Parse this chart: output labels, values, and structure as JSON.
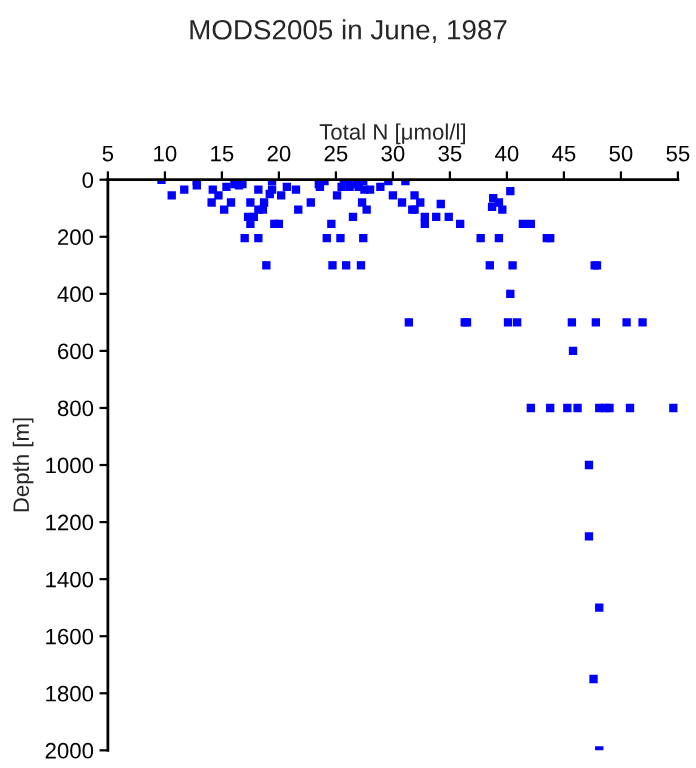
{
  "chart_data": {
    "type": "scatter",
    "title": "MODS2005 in June, 1987",
    "xlabel": "Total N [μmol/l]",
    "ylabel": "Depth [m]",
    "x": [
      9.7,
      10.6,
      11.7,
      12.8,
      12.8,
      14.2,
      14.1,
      14.7,
      15.2,
      15.4,
      15.8,
      16.1,
      16.5,
      16.8,
      17.0,
      17.3,
      17.5,
      17.5,
      17.8,
      18.2,
      18.2,
      18.2,
      18.6,
      18.7,
      18.9,
      19.2,
      19.4,
      19.4,
      19.6,
      20.0,
      20.2,
      20.7,
      21.5,
      21.7,
      22.8,
      23.5,
      23.6,
      24.0,
      24.2,
      24.6,
      24.7,
      25.1,
      25.4,
      25.5,
      25.7,
      25.9,
      26.1,
      26.2,
      26.5,
      26.8,
      27.0,
      27.2,
      27.4,
      27.3,
      27.4,
      27.5,
      27.7,
      28.0,
      28.9,
      29.6,
      30.0,
      30.8,
      31.1,
      31.4,
      31.7,
      31.9,
      31.9,
      32.4,
      32.8,
      32.8,
      33.8,
      34.2,
      34.9,
      35.9,
      37.7,
      38.5,
      38.8,
      38.7,
      39.3,
      39.3,
      39.6,
      40.3,
      40.5,
      40.3,
      41.4,
      42.1,
      43.5,
      43.8,
      47.7,
      47.9,
      36.3,
      36.5,
      40.1,
      40.9,
      45.7,
      47.8,
      50.5,
      51.9,
      45.8,
      42.1,
      43.8,
      45.3,
      46.2,
      48.1,
      48.6,
      49.0,
      50.8,
      54.6,
      47.2,
      47.2,
      48.1,
      47.6,
      48.1
    ],
    "series": [
      {
        "color": "#0000ff",
        "values": [
          0,
          55,
          35,
          5,
          20,
          35,
          80,
          55,
          105,
          25,
          80,
          15,
          20,
          15,
          205,
          130,
          80,
          155,
          130,
          205,
          35,
          105,
          105,
          80,
          300,
          50,
          5,
          35,
          155,
          155,
          55,
          25,
          35,
          105,
          80,
          15,
          25,
          5,
          205,
          155,
          300,
          55,
          205,
          25,
          5,
          300,
          5,
          25,
          130,
          15,
          25,
          300,
          205,
          80,
          5,
          35,
          105,
          35,
          25,
          5,
          55,
          80,
          5,
          500,
          105,
          105,
          55,
          80,
          130,
          155,
          130,
          85,
          130,
          155,
          205,
          300,
          65,
          95,
          80,
          205,
          105,
          40,
          300,
          400,
          155,
          155,
          205,
          205,
          300,
          300,
          500,
          500,
          500,
          500,
          500,
          500,
          500,
          500,
          600,
          800,
          800,
          800,
          800,
          800,
          800,
          800,
          800,
          800,
          1000,
          1250,
          1500,
          1750,
          2000
        ]
      }
    ],
    "xlim": [
      5,
      55
    ],
    "xticks": [
      5,
      10,
      15,
      20,
      25,
      30,
      35,
      40,
      45,
      50,
      55
    ],
    "ylim": [
      2000,
      0
    ],
    "yticks": [
      0,
      200,
      400,
      600,
      800,
      1000,
      1200,
      1400,
      1600,
      1800,
      2000
    ],
    "marker": "square",
    "grid": false
  }
}
